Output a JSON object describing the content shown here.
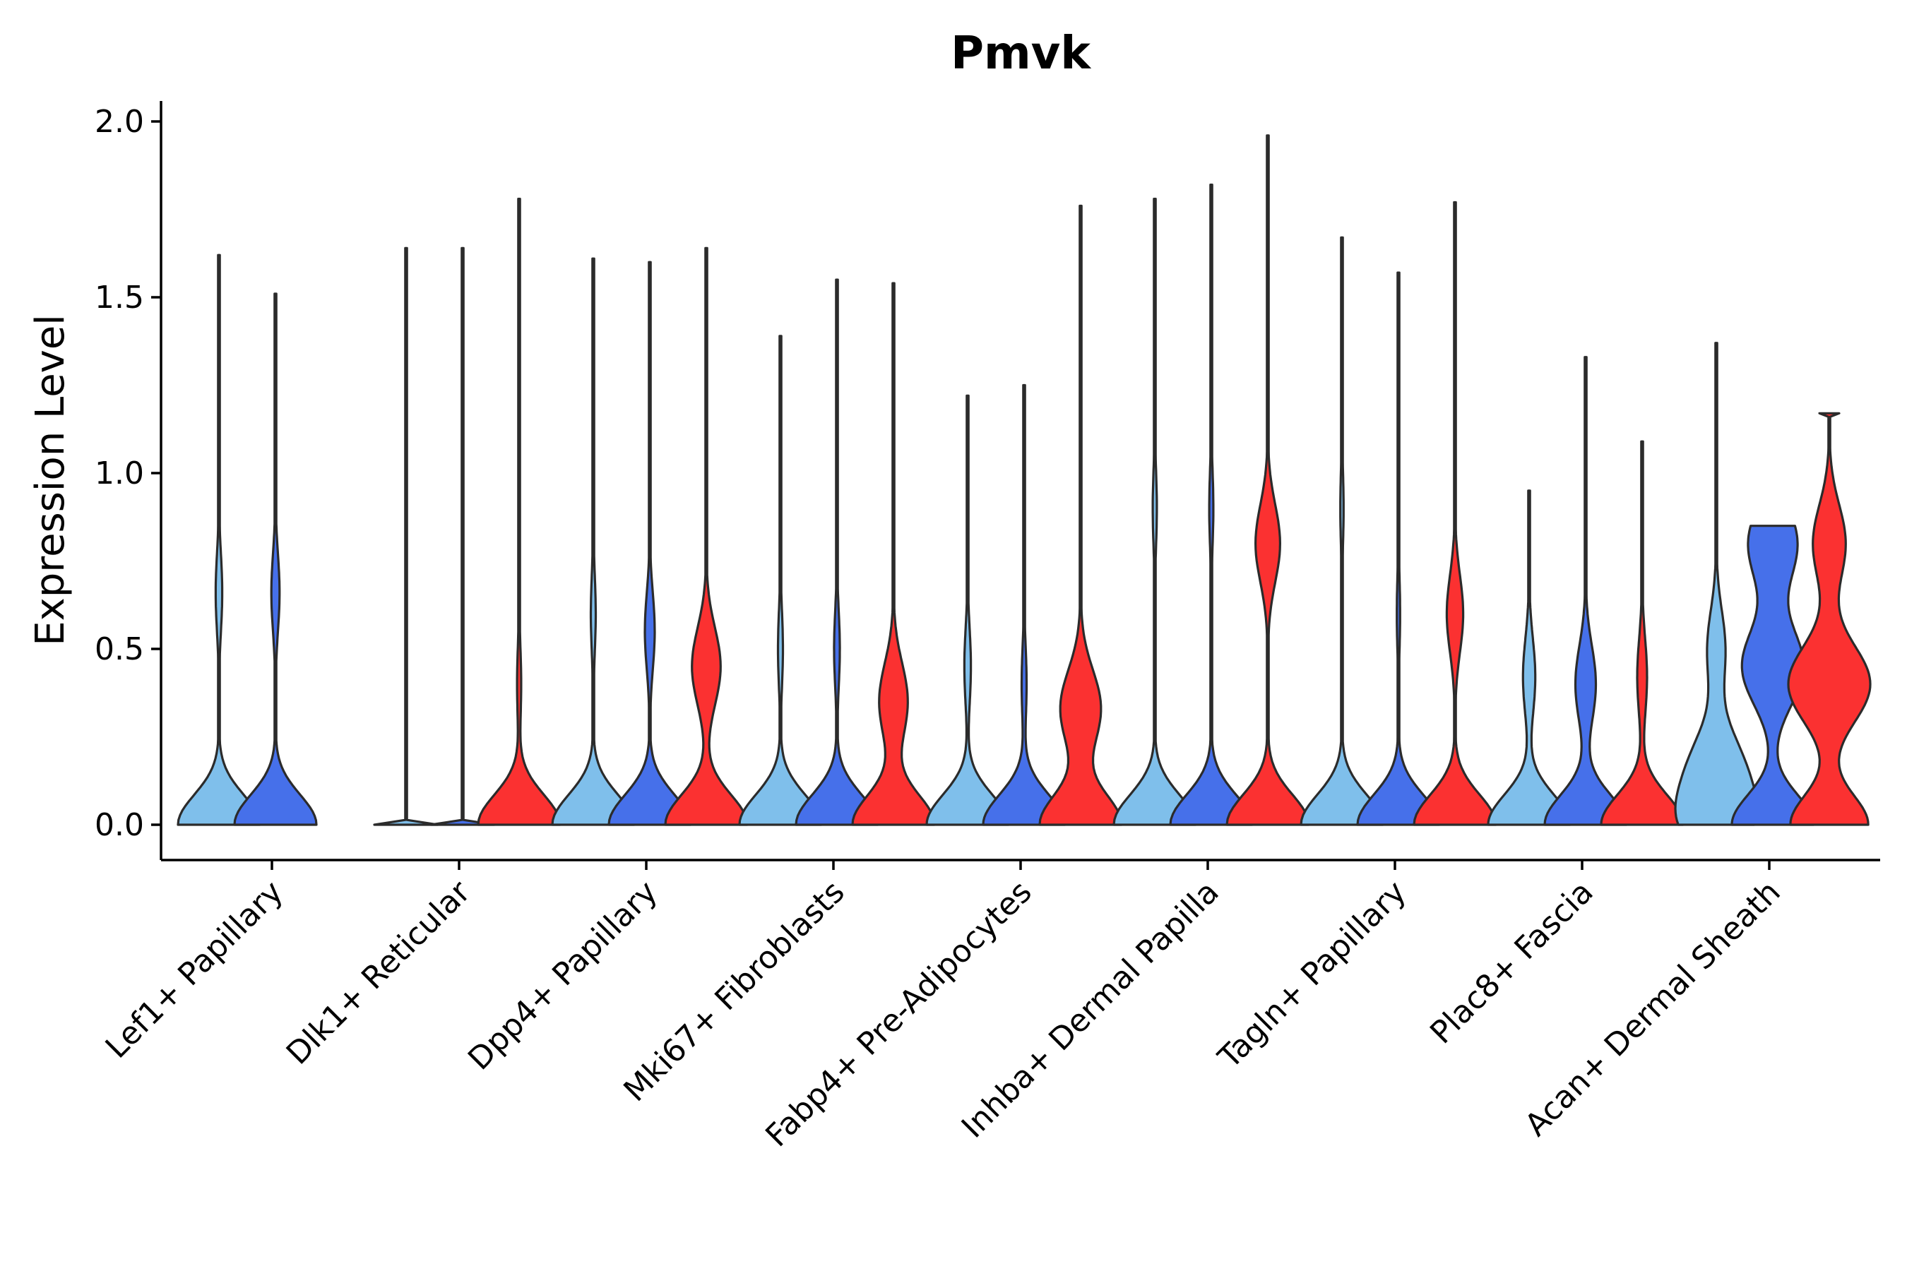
{
  "chart_data": {
    "type": "violin",
    "title": "Pmvk",
    "ylabel": "Expression Level",
    "xlabel": "",
    "ylim": [
      -0.1,
      2.05
    ],
    "yticks": [
      0.0,
      0.5,
      1.0,
      1.5,
      2.0
    ],
    "ytick_labels": [
      "0.0",
      "0.5",
      "1.0",
      "1.5",
      "2.0"
    ],
    "group_colors": [
      "#7fbfeb",
      "#4670ea",
      "#fb3131"
    ],
    "categories": [
      {
        "label": "Lef1+ Papillary",
        "violins": [
          {
            "group": 0,
            "max": 1.62,
            "peaks": [
              [
                0.0,
                1.0
              ],
              [
                0.66,
                0.08
              ]
            ]
          },
          {
            "group": 1,
            "max": 1.51,
            "peaks": [
              [
                0.0,
                1.0
              ],
              [
                0.66,
                0.1
              ]
            ]
          },
          null
        ]
      },
      {
        "label": "Dlk1+ Reticular",
        "violins": [
          {
            "group": 0,
            "max": 1.64,
            "peaks": [
              [
                0.0,
                1.0
              ]
            ],
            "flat": true
          },
          {
            "group": 1,
            "max": 1.64,
            "peaks": [
              [
                0.0,
                1.0
              ]
            ],
            "flat": true
          },
          {
            "group": 2,
            "max": 1.78,
            "peaks": [
              [
                0.0,
                1.0
              ],
              [
                0.4,
                0.05
              ]
            ]
          }
        ]
      },
      {
        "label": "Dpp4+ Papillary",
        "violins": [
          {
            "group": 0,
            "max": 1.61,
            "peaks": [
              [
                0.0,
                1.0
              ],
              [
                0.6,
                0.06
              ]
            ]
          },
          {
            "group": 1,
            "max": 1.6,
            "peaks": [
              [
                0.0,
                1.0
              ],
              [
                0.55,
                0.12
              ]
            ]
          },
          {
            "group": 2,
            "max": 1.64,
            "peaks": [
              [
                0.0,
                1.0
              ],
              [
                0.45,
                0.35
              ]
            ]
          }
        ]
      },
      {
        "label": "Mki67+ Fibroblasts",
        "violins": [
          {
            "group": 0,
            "max": 1.39,
            "peaks": [
              [
                0.0,
                1.0
              ],
              [
                0.5,
                0.06
              ]
            ]
          },
          {
            "group": 1,
            "max": 1.55,
            "peaks": [
              [
                0.0,
                1.0
              ],
              [
                0.5,
                0.07
              ]
            ]
          },
          {
            "group": 2,
            "max": 1.54,
            "peaks": [
              [
                0.0,
                1.0
              ],
              [
                0.35,
                0.35
              ]
            ]
          }
        ]
      },
      {
        "label": "Fabp4+ Pre-Adipocytes",
        "violins": [
          {
            "group": 0,
            "max": 1.22,
            "peaks": [
              [
                0.0,
                1.0
              ],
              [
                0.45,
                0.08
              ]
            ]
          },
          {
            "group": 1,
            "max": 1.25,
            "peaks": [
              [
                0.0,
                1.0
              ],
              [
                0.4,
                0.06
              ]
            ]
          },
          {
            "group": 2,
            "max": 1.76,
            "peaks": [
              [
                0.0,
                1.0
              ],
              [
                0.33,
                0.5
              ]
            ]
          }
        ]
      },
      {
        "label": "Inhba+ Dermal Papilla",
        "violins": [
          {
            "group": 0,
            "max": 1.78,
            "peaks": [
              [
                0.0,
                1.0
              ],
              [
                0.9,
                0.05
              ]
            ]
          },
          {
            "group": 1,
            "max": 1.82,
            "peaks": [
              [
                0.0,
                1.0
              ],
              [
                0.9,
                0.05
              ]
            ]
          },
          {
            "group": 2,
            "max": 1.96,
            "peaks": [
              [
                0.0,
                1.0
              ],
              [
                0.8,
                0.3
              ]
            ]
          }
        ]
      },
      {
        "label": "Tagln+ Papillary",
        "violins": [
          {
            "group": 0,
            "max": 1.67,
            "peaks": [
              [
                0.0,
                1.0
              ],
              [
                0.9,
                0.04
              ]
            ]
          },
          {
            "group": 1,
            "max": 1.57,
            "peaks": [
              [
                0.0,
                1.0
              ],
              [
                0.6,
                0.04
              ]
            ]
          },
          {
            "group": 2,
            "max": 1.77,
            "peaks": [
              [
                0.0,
                1.0
              ],
              [
                0.6,
                0.2
              ]
            ]
          }
        ]
      },
      {
        "label": "Plac8+ Fascia",
        "violins": [
          {
            "group": 0,
            "max": 0.95,
            "peaks": [
              [
                0.0,
                1.0
              ],
              [
                0.42,
                0.15
              ]
            ]
          },
          {
            "group": 1,
            "max": 1.33,
            "peaks": [
              [
                0.0,
                1.0
              ],
              [
                0.4,
                0.25
              ]
            ]
          },
          {
            "group": 2,
            "max": 1.09,
            "peaks": [
              [
                0.0,
                1.0
              ],
              [
                0.42,
                0.12
              ]
            ]
          }
        ]
      },
      {
        "label": "Acan+ Dermal Sheath",
        "violins": [
          {
            "group": 0,
            "max": 1.37,
            "peaks": [
              [
                0.0,
                0.9
              ],
              [
                0.15,
                0.9
              ],
              [
                0.5,
                0.3
              ]
            ]
          },
          {
            "group": 1,
            "max": 0.85,
            "peaks": [
              [
                0.0,
                1.0
              ],
              [
                0.45,
                0.75
              ],
              [
                0.8,
                0.6
              ]
            ],
            "wide_top": true
          },
          {
            "group": 2,
            "max": 1.17,
            "peaks": [
              [
                0.0,
                0.95
              ],
              [
                0.4,
                1.0
              ],
              [
                0.8,
                0.4
              ]
            ],
            "wide_top": true
          }
        ]
      }
    ],
    "legend": "none",
    "grid": false
  }
}
